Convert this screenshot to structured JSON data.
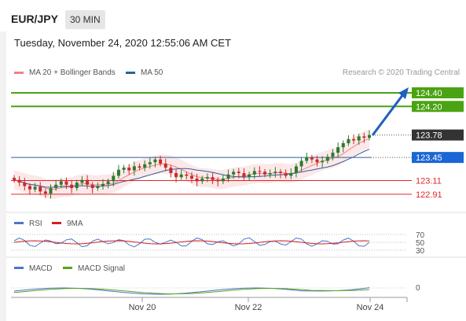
{
  "header": {
    "pair": "EUR/JPY",
    "timeframe": "30 MIN"
  },
  "date_text": "Tuesday, November 24, 2020 12:55:06 AM CET",
  "legend": {
    "ma20": "MA 20 + Bollinger Bands",
    "ma50": "MA 50",
    "credit": "Research © 2020 Trading Central",
    "rsi": "RSI",
    "rsi_ma": "9MA",
    "macd": "MACD",
    "macd_signal": "MACD Signal"
  },
  "colors": {
    "resistance": "#4aa312",
    "current": "#333333",
    "pivot": "#1a66d6",
    "support": "#e0262b",
    "ma20": "#f08080",
    "ma50": "#2f5f9e",
    "candle_up": "#2d7a2d",
    "candle_down": "#c72b2b",
    "rsi": "#4d74c9",
    "rsi_ma": "#d42020",
    "macd": "#4d74c9",
    "macd_signal": "#5aa21c"
  },
  "chart_data": {
    "type": "candlestick",
    "x_ticks": [
      "Nov 20",
      "Nov 22",
      "Nov 24"
    ],
    "y_range": [
      122.7,
      124.55
    ],
    "levels": [
      {
        "name": "resistance-2",
        "value": 124.4,
        "label": "124.40",
        "kind": "resistance"
      },
      {
        "name": "resistance-1",
        "value": 124.2,
        "label": "124.20",
        "kind": "resistance"
      },
      {
        "name": "current-price",
        "value": 123.78,
        "label": "123.78",
        "kind": "current"
      },
      {
        "name": "pivot",
        "value": 123.45,
        "label": "123.45",
        "kind": "pivot"
      },
      {
        "name": "support-1",
        "value": 123.11,
        "label": "123.11",
        "kind": "support"
      },
      {
        "name": "support-2",
        "value": 122.91,
        "label": "122.91",
        "kind": "support"
      }
    ],
    "close_path": [
      123.12,
      123.08,
      123.03,
      122.98,
      123.02,
      122.95,
      122.92,
      123.0,
      123.05,
      123.1,
      123.05,
      123.0,
      123.08,
      123.12,
      123.05,
      123.0,
      123.03,
      123.06,
      123.1,
      123.18,
      123.27,
      123.3,
      123.26,
      123.32,
      123.3,
      123.35,
      123.38,
      123.42,
      123.36,
      123.3,
      123.22,
      123.16,
      123.2,
      123.18,
      123.14,
      123.1,
      123.14,
      123.16,
      123.12,
      123.1,
      123.14,
      123.2,
      123.24,
      123.22,
      123.16,
      123.2,
      123.25,
      123.24,
      123.2,
      123.22,
      123.24,
      123.22,
      123.18,
      123.22,
      123.32,
      123.4,
      123.45,
      123.42,
      123.38,
      123.4,
      123.46,
      123.52,
      123.6,
      123.66,
      123.72,
      123.7,
      123.76,
      123.74,
      123.78
    ],
    "ma_levels": [
      70,
      50,
      30
    ],
    "macd_level": 0
  }
}
